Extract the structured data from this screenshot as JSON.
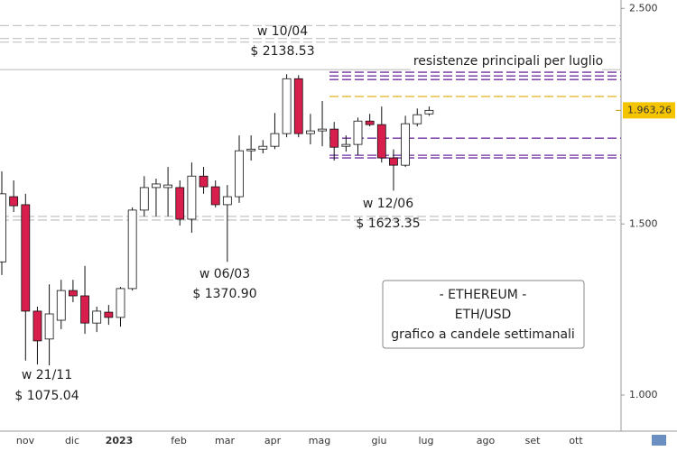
{
  "chart_data": {
    "type": "candlestick",
    "log_scale": true,
    "ylim": [
      918,
      2550
    ],
    "yticks": [
      {
        "value": 2500,
        "label": "2.500"
      },
      {
        "value": 1500,
        "label": "1.500"
      },
      {
        "value": 1000,
        "label": "1.000"
      }
    ],
    "x_labels": [
      "nov",
      "dic",
      "2023",
      "feb",
      "mar",
      "apr",
      "mag",
      "giu",
      "lug",
      "ago",
      "set",
      "ott"
    ],
    "up_color": "#ffffff",
    "down_color": "#d81e4c",
    "candles": [
      {
        "o": 1371,
        "h": 1699,
        "l": 1329,
        "c": 1611
      },
      {
        "o": 1600,
        "h": 1663,
        "l": 1543,
        "c": 1566
      },
      {
        "o": 1570,
        "h": 1611,
        "l": 1085,
        "c": 1220
      },
      {
        "o": 1220,
        "h": 1233,
        "l": 1075,
        "c": 1137
      },
      {
        "o": 1142,
        "h": 1300,
        "l": 1073,
        "c": 1212
      },
      {
        "o": 1194,
        "h": 1314,
        "l": 1169,
        "c": 1281
      },
      {
        "o": 1281,
        "h": 1314,
        "l": 1246,
        "c": 1265
      },
      {
        "o": 1265,
        "h": 1358,
        "l": 1156,
        "c": 1186
      },
      {
        "o": 1186,
        "h": 1233,
        "l": 1161,
        "c": 1220
      },
      {
        "o": 1217,
        "h": 1238,
        "l": 1181,
        "c": 1202
      },
      {
        "o": 1202,
        "h": 1292,
        "l": 1176,
        "c": 1287
      },
      {
        "o": 1287,
        "h": 1560,
        "l": 1281,
        "c": 1550
      },
      {
        "o": 1550,
        "h": 1680,
        "l": 1527,
        "c": 1635
      },
      {
        "o": 1635,
        "h": 1670,
        "l": 1527,
        "c": 1649
      },
      {
        "o": 1635,
        "h": 1717,
        "l": 1527,
        "c": 1645
      },
      {
        "o": 1635,
        "h": 1663,
        "l": 1494,
        "c": 1517
      },
      {
        "o": 1517,
        "h": 1735,
        "l": 1469,
        "c": 1680
      },
      {
        "o": 1680,
        "h": 1717,
        "l": 1611,
        "c": 1638
      },
      {
        "o": 1638,
        "h": 1663,
        "l": 1560,
        "c": 1570
      },
      {
        "o": 1570,
        "h": 1645,
        "l": 1371,
        "c": 1600
      },
      {
        "o": 1600,
        "h": 1850,
        "l": 1577,
        "c": 1784
      },
      {
        "o": 1784,
        "h": 1850,
        "l": 1743,
        "c": 1791
      },
      {
        "o": 1791,
        "h": 1830,
        "l": 1773,
        "c": 1803
      },
      {
        "o": 1803,
        "h": 1951,
        "l": 1791,
        "c": 1858
      },
      {
        "o": 1858,
        "h": 2139,
        "l": 1842,
        "c": 2116
      },
      {
        "o": 2116,
        "h": 2134,
        "l": 1842,
        "c": 1858
      },
      {
        "o": 1858,
        "h": 1947,
        "l": 1811,
        "c": 1870
      },
      {
        "o": 1870,
        "h": 2007,
        "l": 1803,
        "c": 1878
      },
      {
        "o": 1878,
        "h": 1910,
        "l": 1743,
        "c": 1799
      },
      {
        "o": 1803,
        "h": 1850,
        "l": 1780,
        "c": 1811
      },
      {
        "o": 1811,
        "h": 1930,
        "l": 1765,
        "c": 1914
      },
      {
        "o": 1914,
        "h": 1947,
        "l": 1890,
        "c": 1898
      },
      {
        "o": 1898,
        "h": 1981,
        "l": 1735,
        "c": 1754
      },
      {
        "o": 1754,
        "h": 1790,
        "l": 1623,
        "c": 1724
      },
      {
        "o": 1724,
        "h": 1938,
        "l": 1717,
        "c": 1902
      },
      {
        "o": 1902,
        "h": 1972,
        "l": 1890,
        "c": 1943
      },
      {
        "o": 1947,
        "h": 1981,
        "l": 1938,
        "c": 1963.26
      }
    ],
    "levels": [
      {
        "color": "#c8c8c8",
        "dashed": false,
        "values": [
          2162
        ]
      },
      {
        "color": "#c8c8c8",
        "dashed": true,
        "values": [
          2400,
          2328,
          2308,
          1527,
          1514
        ]
      },
      {
        "color": "#7030a0",
        "dashed": true,
        "values": [
          2149,
          2130,
          2112,
          1838,
          1765,
          1754
        ]
      },
      {
        "color": "#e8b830",
        "dashed": true,
        "values": [
          2029
        ]
      }
    ],
    "last_price": {
      "value": 1963.26,
      "label": "1.963,26"
    },
    "annotations": {
      "high": [
        "w 10/04",
        "$ 2138.53"
      ],
      "low_nov": [
        "w 21/11",
        "$ 1075.04"
      ],
      "low_mar": [
        "w 06/03",
        "$ 1370.90"
      ],
      "low_jun": [
        "w 12/06",
        "$ 1623.35"
      ],
      "resistance": "resistenze principali per luglio"
    },
    "info_box": [
      "- ETHEREUM -",
      "ETH/USD",
      "grafico a candele settimanali"
    ]
  }
}
